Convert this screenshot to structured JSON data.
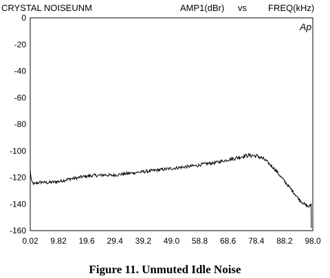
{
  "header": {
    "left": "CRYSTAL NOISEUNM",
    "amp": "AMP1(dBr)",
    "vs": "vs",
    "freq": "FREQ(kHz)"
  },
  "badge": "Ap",
  "caption": "Figure 11.  Unmuted Idle Noise",
  "colors": {
    "line": "#000000",
    "background": "#ffffff",
    "axis": "#000000"
  },
  "chart_data": {
    "type": "line",
    "title": "CRYSTAL NOISEUNM",
    "xlabel": "FREQ(kHz)",
    "ylabel": "AMP1(dBr)",
    "xlim": [
      0.02,
      98.0
    ],
    "ylim": [
      -160,
      0
    ],
    "x_ticks": [
      "0.02",
      "9.82",
      "19.6",
      "29.4",
      "39.2",
      "49.0",
      "58.8",
      "68.6",
      "78.4",
      "88.2",
      "98.0"
    ],
    "y_ticks": [
      "0",
      "-20",
      "-40",
      "-60",
      "-80",
      "-100",
      "-120",
      "-140",
      "-160"
    ],
    "grid": false,
    "series": [
      {
        "x": [
          0.02,
          0.3,
          0.8,
          1.5,
          2.5,
          4.0,
          6.0,
          8.0,
          10.0,
          12.0,
          14.0,
          16.0,
          18.0,
          20.0,
          22.0,
          24.0,
          26.0,
          28.0,
          30.0,
          32.0,
          34.0,
          36.0,
          38.0,
          40.0,
          42.0,
          44.0,
          46.0,
          48.0,
          50.0,
          52.0,
          54.0,
          56.0,
          58.0,
          60.0,
          62.0,
          64.0,
          66.0,
          68.0,
          70.0,
          72.0,
          74.0,
          75.5,
          77.0,
          78.5,
          80.0,
          81.5,
          83.0,
          84.5,
          86.0,
          87.5,
          89.0,
          90.5,
          92.0,
          93.5,
          95.0,
          96.0,
          96.7,
          97.2,
          97.4,
          97.5
        ],
        "y": [
          -114,
          -121,
          -124,
          -125,
          -124,
          -123.5,
          -124,
          -123.5,
          -123,
          -122,
          -121,
          -120.5,
          -119.5,
          -119,
          -118.5,
          -118.5,
          -118,
          -118.5,
          -118,
          -117.5,
          -117,
          -116.5,
          -116,
          -115.5,
          -115,
          -114.5,
          -114,
          -113.5,
          -113,
          -112.5,
          -112,
          -111.5,
          -111,
          -110,
          -109.5,
          -109,
          -108,
          -107,
          -106,
          -105,
          -104,
          -103.5,
          -103.5,
          -104,
          -105,
          -107,
          -110,
          -113,
          -117,
          -121,
          -125,
          -129,
          -133,
          -137,
          -140,
          -141.5,
          -142,
          -141,
          -140,
          -158
        ]
      }
    ]
  }
}
